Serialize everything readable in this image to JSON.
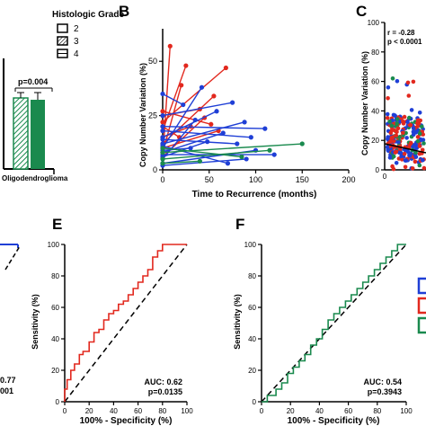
{
  "colors": {
    "blue": "#1f3fd6",
    "red": "#e2281e",
    "green": "#1a8a4e",
    "dash": "#000000"
  },
  "panels": {
    "A": {
      "legend_title": "Histologic Grade",
      "legend_items": [
        "2",
        "3",
        "4"
      ],
      "category_label": "Oligodendroglioma",
      "pvalue": "p=0.004"
    },
    "B": {
      "letter": "B",
      "title": "",
      "xlabel": "Time to Recurrence (months)",
      "ylabel": "Copy Number Variation (%)",
      "xticks": [
        "0",
        "50",
        "100",
        "150",
        "200"
      ],
      "yticks": [
        "0",
        "25",
        "50"
      ]
    },
    "C": {
      "letter": "C",
      "ylabel": "Copy Number Variation (%)",
      "r_text": "r = -0.28",
      "p_text": "p < 0.0001",
      "ytick_labels": [
        "0",
        "20",
        "40",
        "60",
        "80",
        "100"
      ],
      "xtick_label": "0"
    },
    "D": {
      "auc_tail": "0.77",
      "p_tail": "001"
    },
    "E": {
      "letter": "E",
      "xlabel": "100% - Specificity (%)",
      "ylabel": "Sensitivity (%)",
      "ticks": [
        "0",
        "20",
        "40",
        "60",
        "80",
        "100"
      ],
      "auc": "AUC: 0.62",
      "p": "p=0.0135"
    },
    "F": {
      "letter": "F",
      "xlabel": "100% - Specificity (%)",
      "ylabel": "Sensitivity (%)",
      "ticks": [
        "0",
        "20",
        "40",
        "60",
        "80",
        "100"
      ],
      "auc": "AUC: 0.54",
      "p": "p=0.3943"
    }
  },
  "chart_data": [
    {
      "panel": "A",
      "type": "bar",
      "categories": [
        "Oligodendroglioma"
      ],
      "series": [
        {
          "name": "2",
          "values": [
            null
          ],
          "pattern": "open"
        },
        {
          "name": "3",
          "values": [
            12
          ],
          "pattern": "hatched"
        },
        {
          "name": "4",
          "values": [
            18
          ],
          "pattern": "grid"
        }
      ],
      "errors": [
        null,
        1.0,
        2.5
      ],
      "ylim": [
        0,
        35
      ],
      "annotation": "p=0.004"
    },
    {
      "panel": "B",
      "type": "line",
      "xlabel": "Time to Recurrence (months)",
      "ylabel": "Copy Number Variation (%)",
      "xlim": [
        0,
        200
      ],
      "ylim": [
        0,
        65
      ],
      "segments": [
        {
          "color": "red",
          "y0": 5,
          "x1": 8,
          "y1": 57
        },
        {
          "color": "red",
          "y0": 18,
          "x1": 25,
          "y1": 48
        },
        {
          "color": "red",
          "y0": 22,
          "x1": 68,
          "y1": 47
        },
        {
          "color": "red",
          "y0": 8,
          "x1": 20,
          "y1": 39
        },
        {
          "color": "red",
          "y0": 12,
          "x1": 55,
          "y1": 34
        },
        {
          "color": "red",
          "y0": 25,
          "x1": 40,
          "y1": 28
        },
        {
          "color": "red",
          "y0": 15,
          "x1": 30,
          "y1": 20
        },
        {
          "color": "red",
          "y0": 27,
          "x1": 52,
          "y1": 21
        },
        {
          "color": "red",
          "y0": 10,
          "x1": 60,
          "y1": 18
        },
        {
          "color": "red",
          "y0": 6,
          "x1": 45,
          "y1": 24
        },
        {
          "color": "red",
          "y0": 20,
          "x1": 18,
          "y1": 15
        },
        {
          "color": "blue",
          "y0": 10,
          "x1": 42,
          "y1": 38
        },
        {
          "color": "blue",
          "y0": 25,
          "x1": 75,
          "y1": 31
        },
        {
          "color": "blue",
          "y0": 35,
          "x1": 22,
          "y1": 30
        },
        {
          "color": "blue",
          "y0": 15,
          "x1": 58,
          "y1": 27
        },
        {
          "color": "blue",
          "y0": 5,
          "x1": 35,
          "y1": 23
        },
        {
          "color": "blue",
          "y0": 12,
          "x1": 88,
          "y1": 22
        },
        {
          "color": "blue",
          "y0": 20,
          "x1": 110,
          "y1": 19
        },
        {
          "color": "blue",
          "y0": 8,
          "x1": 65,
          "y1": 17
        },
        {
          "color": "blue",
          "y0": 18,
          "x1": 95,
          "y1": 15
        },
        {
          "color": "blue",
          "y0": 6,
          "x1": 48,
          "y1": 13
        },
        {
          "color": "blue",
          "y0": 14,
          "x1": 80,
          "y1": 12
        },
        {
          "color": "blue",
          "y0": 9,
          "x1": 30,
          "y1": 10
        },
        {
          "color": "blue",
          "y0": 3,
          "x1": 100,
          "y1": 9
        },
        {
          "color": "blue",
          "y0": 7,
          "x1": 120,
          "y1": 7
        },
        {
          "color": "blue",
          "y0": 2,
          "x1": 90,
          "y1": 5
        },
        {
          "color": "blue",
          "y0": 11,
          "x1": 70,
          "y1": 3
        },
        {
          "color": "green",
          "y0": 8,
          "x1": 150,
          "y1": 12
        },
        {
          "color": "green",
          "y0": 5,
          "x1": 115,
          "y1": 9
        },
        {
          "color": "green",
          "y0": 10,
          "x1": 85,
          "y1": 6
        },
        {
          "color": "green",
          "y0": 3,
          "x1": 40,
          "y1": 4
        }
      ]
    },
    {
      "panel": "C",
      "type": "scatter",
      "ylabel": "Copy Number Variation (%)",
      "ylim": [
        0,
        100
      ],
      "r": -0.28,
      "p": "< 0.0001"
    },
    {
      "panel": "E",
      "type": "line",
      "xlabel": "100% - Specificity (%)",
      "ylabel": "Sensitivity (%)",
      "xlim": [
        0,
        100
      ],
      "ylim": [
        0,
        100
      ],
      "roc": [
        [
          0,
          0
        ],
        [
          0,
          8
        ],
        [
          2,
          8
        ],
        [
          2,
          14
        ],
        [
          5,
          14
        ],
        [
          5,
          20
        ],
        [
          8,
          20
        ],
        [
          8,
          24
        ],
        [
          12,
          24
        ],
        [
          12,
          30
        ],
        [
          15,
          30
        ],
        [
          15,
          32
        ],
        [
          20,
          32
        ],
        [
          20,
          38
        ],
        [
          24,
          38
        ],
        [
          24,
          44
        ],
        [
          28,
          44
        ],
        [
          28,
          46
        ],
        [
          32,
          46
        ],
        [
          32,
          52
        ],
        [
          36,
          52
        ],
        [
          36,
          56
        ],
        [
          40,
          56
        ],
        [
          40,
          58
        ],
        [
          44,
          58
        ],
        [
          44,
          62
        ],
        [
          48,
          62
        ],
        [
          48,
          64
        ],
        [
          52,
          64
        ],
        [
          52,
          68
        ],
        [
          56,
          68
        ],
        [
          56,
          72
        ],
        [
          60,
          72
        ],
        [
          60,
          76
        ],
        [
          64,
          76
        ],
        [
          64,
          80
        ],
        [
          68,
          80
        ],
        [
          68,
          84
        ],
        [
          72,
          84
        ],
        [
          72,
          92
        ],
        [
          76,
          92
        ],
        [
          76,
          96
        ],
        [
          80,
          96
        ],
        [
          80,
          100
        ],
        [
          100,
          100
        ]
      ],
      "auc": 0.62,
      "p": 0.0135
    },
    {
      "panel": "F",
      "type": "line",
      "xlabel": "100% - Specificity (%)",
      "ylabel": "Sensitivity (%)",
      "xlim": [
        0,
        100
      ],
      "ylim": [
        0,
        100
      ],
      "roc": [
        [
          0,
          0
        ],
        [
          4,
          0
        ],
        [
          4,
          4
        ],
        [
          10,
          4
        ],
        [
          10,
          8
        ],
        [
          14,
          8
        ],
        [
          14,
          12
        ],
        [
          18,
          12
        ],
        [
          18,
          18
        ],
        [
          22,
          18
        ],
        [
          22,
          22
        ],
        [
          26,
          22
        ],
        [
          26,
          26
        ],
        [
          30,
          26
        ],
        [
          30,
          30
        ],
        [
          34,
          30
        ],
        [
          34,
          36
        ],
        [
          38,
          36
        ],
        [
          38,
          40
        ],
        [
          42,
          40
        ],
        [
          42,
          46
        ],
        [
          46,
          46
        ],
        [
          46,
          52
        ],
        [
          50,
          52
        ],
        [
          50,
          56
        ],
        [
          54,
          56
        ],
        [
          54,
          60
        ],
        [
          58,
          60
        ],
        [
          58,
          64
        ],
        [
          62,
          64
        ],
        [
          62,
          68
        ],
        [
          66,
          68
        ],
        [
          66,
          72
        ],
        [
          70,
          72
        ],
        [
          70,
          76
        ],
        [
          74,
          76
        ],
        [
          74,
          80
        ],
        [
          78,
          80
        ],
        [
          78,
          84
        ],
        [
          82,
          84
        ],
        [
          82,
          88
        ],
        [
          86,
          88
        ],
        [
          86,
          92
        ],
        [
          90,
          92
        ],
        [
          90,
          96
        ],
        [
          94,
          96
        ],
        [
          94,
          100
        ],
        [
          100,
          100
        ]
      ],
      "auc": 0.54,
      "p": 0.3943
    }
  ]
}
